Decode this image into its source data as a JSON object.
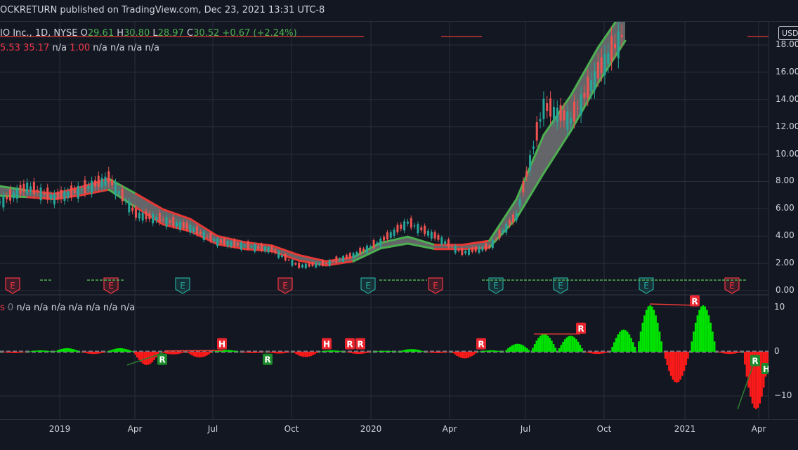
{
  "header": {
    "publish_text": "OCKRETURN published on TradingView.com, Dec 23, 2021 13:31 UTC-8"
  },
  "legend": {
    "symbol": "IO Inc., 1D, NYSE",
    "open_label": "O",
    "open": "29.61",
    "high_label": "H",
    "high": "30.80",
    "low_label": "L",
    "low": "28.97",
    "close_label": "C",
    "close": "30.52",
    "change": "+0.67 (+2.24%)",
    "indicator1_values": [
      "5.53",
      "35.17"
    ],
    "indicator1_na": "n/a",
    "indicator1_one": "1.00",
    "indicator1_rest": "n/a n/a n/a n/a",
    "indicator2_zero": "0",
    "indicator2_rest": "n/a n/a n/a n/a n/a n/a n/a"
  },
  "price_axis": {
    "currency": "USD",
    "ticks": [
      "18.00",
      "16.00",
      "14.00",
      "12.00",
      "10.00",
      "8.00",
      "6.00",
      "4.00",
      "2.00",
      "0.00"
    ]
  },
  "osc_axis": {
    "ticks": [
      "10",
      "0",
      "−10"
    ]
  },
  "time_axis": {
    "ticks": [
      "2019",
      "Apr",
      "Jul",
      "Oct",
      "2020",
      "Apr",
      "Jul",
      "Oct",
      "2021",
      "Apr"
    ]
  },
  "colors": {
    "background": "#131722",
    "grid": "#2a2e39",
    "up": "#26a69a",
    "down": "#ef5350",
    "ribbon_bear": "#e53935",
    "ribbon_bull": "#4caf50",
    "ribbon_fill": "#808080",
    "osc_bull": "#00e600",
    "osc_bear": "#ff1a1a"
  },
  "chart_data": {
    "type": "line",
    "price": {
      "dates": [
        "2018-11",
        "2018-12",
        "2019-01",
        "2019-02",
        "2019-03",
        "2019-04",
        "2019-05",
        "2019-06",
        "2019-07",
        "2019-08",
        "2019-09",
        "2019-10",
        "2019-11",
        "2019-12",
        "2020-01",
        "2020-02",
        "2020-03",
        "2020-04",
        "2020-05",
        "2020-06",
        "2020-07",
        "2020-08",
        "2020-09",
        "2020-10"
      ],
      "close": [
        6.5,
        7.6,
        6.8,
        7.4,
        8.2,
        5.6,
        5.2,
        4.6,
        3.6,
        3.3,
        3.0,
        1.8,
        2.0,
        2.6,
        3.6,
        5.0,
        4.0,
        2.8,
        3.2,
        5.5,
        13.5,
        12.5,
        16.0,
        19.0
      ],
      "ribbon": [
        7.3,
        7.1,
        6.9,
        7.3,
        7.8,
        6.6,
        5.4,
        4.8,
        3.7,
        3.3,
        3.1,
        2.4,
        2.0,
        2.3,
        3.3,
        3.7,
        3.2,
        3.2,
        3.4,
        6.0,
        10.0,
        13.0,
        16.5,
        19.5
      ],
      "ribbon_width": [
        0.35,
        0.25,
        0.2,
        0.3,
        0.4,
        0.5,
        0.55,
        0.45,
        0.3,
        0.25,
        0.2,
        0.2,
        0.15,
        0.15,
        0.2,
        0.25,
        0.15,
        0.15,
        0.25,
        0.7,
        1.4,
        1.3,
        1.3,
        1.2
      ],
      "ribbon_color": [
        "bull",
        "bear",
        "bear",
        "bear",
        "bull",
        "bear",
        "bear",
        "bear",
        "bear",
        "bear",
        "bear",
        "bear",
        "bear",
        "bull",
        "bull",
        "bull",
        "bear",
        "bear",
        "bull",
        "bull",
        "bull",
        "bull",
        "bull",
        "bull"
      ]
    },
    "earnings_markers": [
      {
        "label": "E",
        "date": "2018-11",
        "kind": "bear"
      },
      {
        "label": "E",
        "date": "2019-03",
        "kind": "bear"
      },
      {
        "label": "E",
        "date": "2019-06",
        "kind": "bull"
      },
      {
        "label": "E",
        "date": "2019-10",
        "kind": "bear"
      },
      {
        "label": "E",
        "date": "2020-01",
        "kind": "bull"
      },
      {
        "label": "E",
        "date": "2020-03",
        "kind": "bear"
      },
      {
        "label": "E",
        "date": "2020-05",
        "kind": "bull"
      },
      {
        "label": "E",
        "date": "2020-08",
        "kind": "bull"
      },
      {
        "label": "E",
        "date": "2020-11",
        "kind": "bull"
      },
      {
        "label": "E",
        "date": "2021-03",
        "kind": "bear"
      }
    ],
    "oscillator": {
      "ylim": [
        -13,
        12
      ],
      "dates": [
        "2018-11",
        "2018-12",
        "2019-01",
        "2019-02",
        "2019-03",
        "2019-04",
        "2019-05",
        "2019-06",
        "2019-07",
        "2019-08",
        "2019-09",
        "2019-10",
        "2019-11",
        "2019-12",
        "2020-01",
        "2020-02",
        "2020-03",
        "2020-04",
        "2020-05",
        "2020-06",
        "2020-07",
        "2020-08",
        "2020-09",
        "2020-10",
        "2020-11",
        "2020-12",
        "2021-01",
        "2021-02",
        "2021-03",
        "2021-04"
      ],
      "values": [
        -0.3,
        0.3,
        0.8,
        -0.5,
        0.8,
        -3.0,
        -0.6,
        -1.3,
        0.4,
        -0.3,
        -0.4,
        -1.2,
        0.3,
        -0.5,
        0.2,
        0.6,
        -0.3,
        -1.5,
        0.3,
        1.8,
        4.0,
        3.6,
        -0.5,
        5.0,
        10.5,
        -7.0,
        10.5,
        -0.5,
        -13.0,
        -3.5
      ],
      "markers": [
        {
          "label": "R",
          "date": "2019-04",
          "value": -1.7,
          "kind": "bull"
        },
        {
          "label": "H",
          "date": "2019-07",
          "value": 1.8,
          "kind": "bear"
        },
        {
          "label": "R",
          "date": "2019-09",
          "value": -1.7,
          "kind": "bull"
        },
        {
          "label": "H",
          "date": "2019-11",
          "value": 1.8,
          "kind": "bear"
        },
        {
          "label": "R",
          "date": "2019-12",
          "value": 1.8,
          "kind": "bear"
        },
        {
          "label": "R",
          "date": "2019-12b",
          "value": 1.8,
          "kind": "bear"
        },
        {
          "label": "R",
          "date": "2020-05",
          "value": 1.8,
          "kind": "bear"
        },
        {
          "label": "R",
          "date": "2020-09",
          "value": 5.3,
          "kind": "bear"
        },
        {
          "label": "R",
          "date": "2021-01",
          "value": 11.5,
          "kind": "bear"
        },
        {
          "label": "R",
          "date": "2021-03",
          "value": -2.0,
          "kind": "bull"
        },
        {
          "label": "H",
          "date": "2021-04",
          "value": -3.8,
          "kind": "bull"
        }
      ]
    }
  }
}
